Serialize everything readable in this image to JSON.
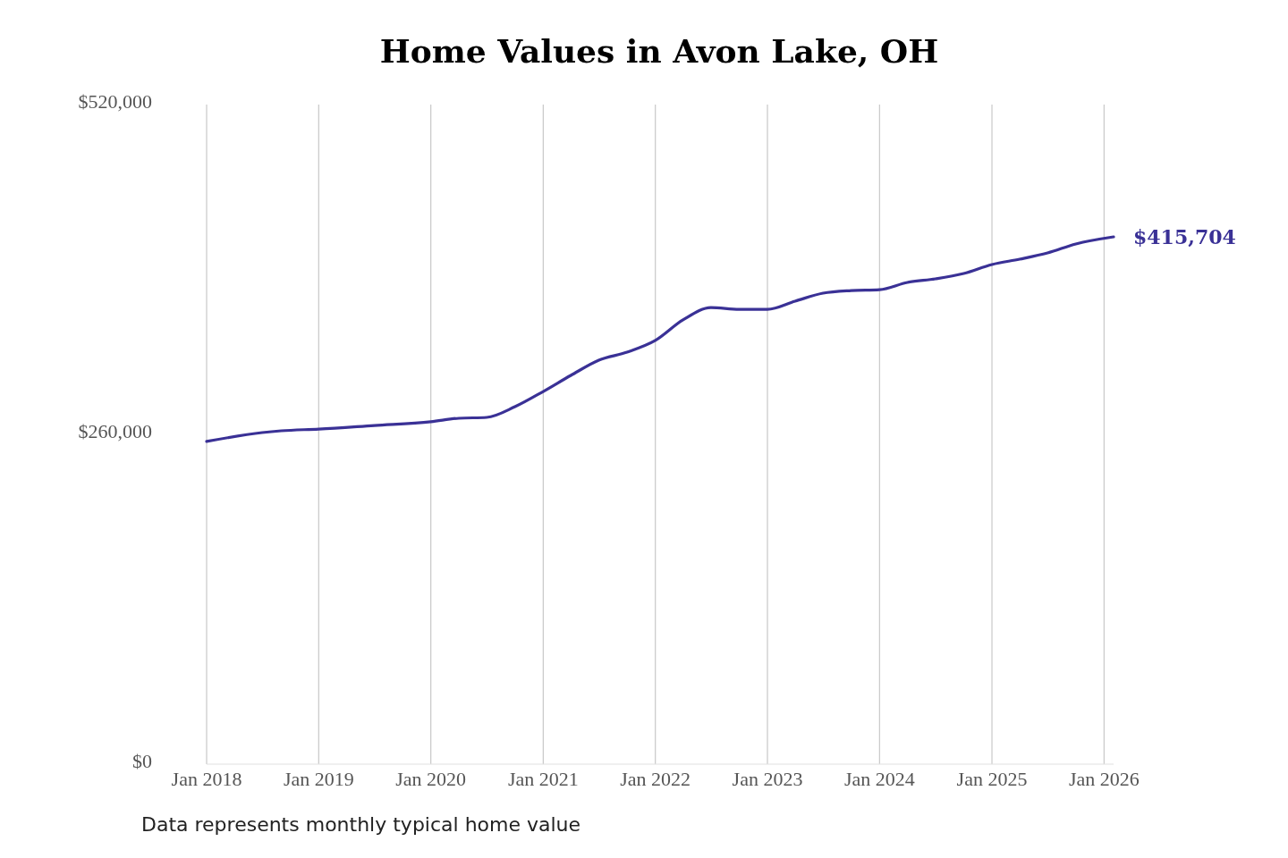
{
  "chart_data": {
    "type": "line",
    "title": "Home Values in Avon Lake, OH",
    "x": [
      "2018-01",
      "2018-07",
      "2018-09",
      "2019-01",
      "2019-07",
      "2020-01",
      "2020-04",
      "2020-07",
      "2020-10",
      "2021-01",
      "2021-04",
      "2021-07",
      "2021-10",
      "2022-01",
      "2022-04",
      "2022-07",
      "2022-10",
      "2023-01",
      "2023-04",
      "2023-07",
      "2023-10",
      "2024-01",
      "2024-04",
      "2024-07",
      "2024-10",
      "2025-01",
      "2025-04",
      "2025-07",
      "2025-10",
      "2026-02"
    ],
    "series": [
      {
        "color": "#3a3196",
        "values": [
          254400,
          261400,
          262800,
          264200,
          267000,
          269900,
          272700,
          273400,
          281800,
          293800,
          306500,
          318500,
          324800,
          334000,
          350200,
          360000,
          358600,
          358600,
          365000,
          371300,
          373400,
          374100,
          379800,
          382600,
          386800,
          393900,
          398100,
          403000,
          410100,
          415704
        ],
        "value_labels": [
          null,
          null,
          null,
          null,
          null,
          null,
          null,
          null,
          null,
          null,
          null,
          null,
          null,
          null,
          null,
          null,
          null,
          null,
          null,
          null,
          null,
          null,
          null,
          null,
          null,
          null,
          null,
          null,
          null,
          "$415,704"
        ]
      }
    ],
    "xticks": [
      {
        "value": "2018-01",
        "label": "Jan 2018"
      },
      {
        "value": "2019-01",
        "label": "Jan 2019"
      },
      {
        "value": "2020-01",
        "label": "Jan 2020"
      },
      {
        "value": "2021-01",
        "label": "Jan 2021"
      },
      {
        "value": "2022-01",
        "label": "Jan 2022"
      },
      {
        "value": "2023-01",
        "label": "Jan 2023"
      },
      {
        "value": "2024-01",
        "label": "Jan 2024"
      },
      {
        "value": "2025-01",
        "label": "Jan 2025"
      },
      {
        "value": "2026-01",
        "label": "Jan 2026"
      }
    ],
    "ylim": [
      0,
      520000
    ],
    "yticks": [
      {
        "value": 0,
        "label": "$0"
      },
      {
        "value": 260000,
        "label": "$260,000"
      },
      {
        "value": 520000,
        "label": "$520,000"
      }
    ],
    "xlim": [
      "2018-01",
      "2026-02"
    ],
    "grid": "x",
    "marker": "none",
    "line_style": "solid",
    "annotations": [
      "Data represents monthly typical home value"
    ]
  }
}
